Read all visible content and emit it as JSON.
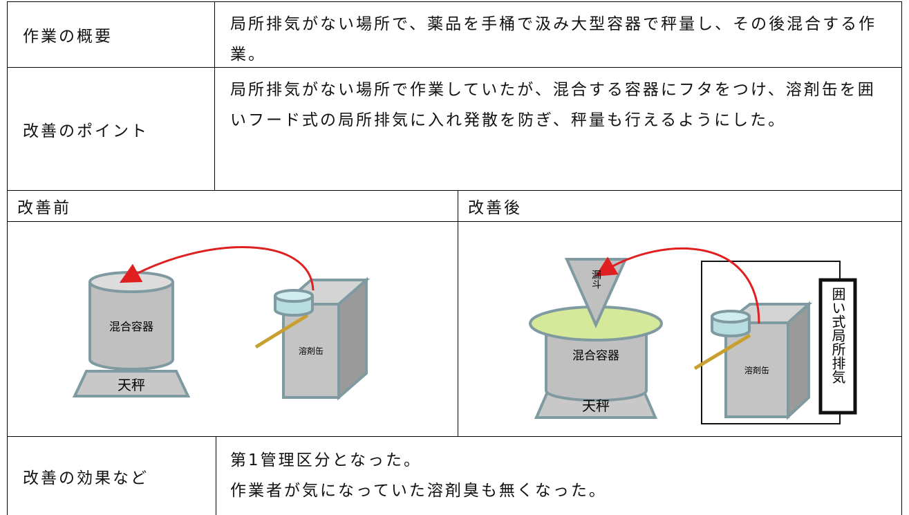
{
  "overview": {
    "label": "作業の概要",
    "text": "局所排気がない場所で、薬品を手桶で汲み大型容器で秤量し、その後混合する作業。"
  },
  "point": {
    "label": "改善のポイント",
    "text": "局所排気がない場所で作業していたが、混合する容器にフタをつけ、溶剤缶を囲いフード式の局所排気に入れ発散を防ぎ、秤量も行えるようにした。"
  },
  "before": {
    "label": "改善前",
    "diagram": {
      "mixer": "混合容器",
      "scale": "天秤",
      "can": "溶剤缶"
    }
  },
  "after": {
    "label": "改善後",
    "diagram": {
      "funnel": "漏斗",
      "mixer": "混合容器",
      "scale": "天秤",
      "can": "溶剤缶",
      "hood": "囲い式局所排気"
    }
  },
  "effect": {
    "label": "改善の効果など",
    "lines": [
      "第1管理区分となった。",
      "作業者が気になっていた溶剤臭も無くなった。"
    ]
  }
}
